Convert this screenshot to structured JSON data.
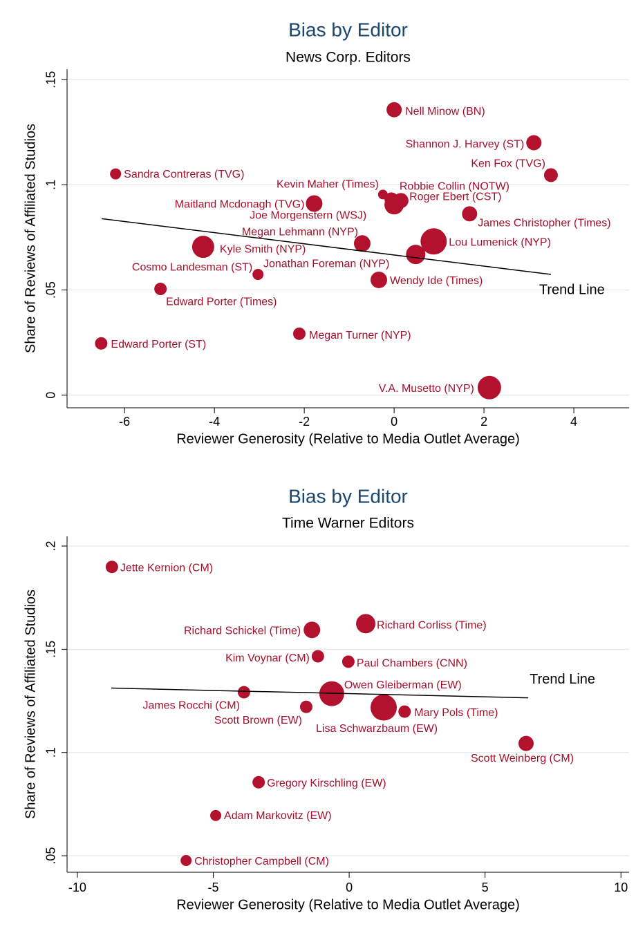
{
  "chart_data": [
    {
      "type": "scatter",
      "title": "Bias by Editor",
      "subtitle": "News Corp. Editors",
      "x_label": "Reviewer Generosity (Relative to Media Outlet Average)",
      "y_label": "Share of Reviews of Affiliated Studios",
      "color": "#b3122e",
      "label_color": "#a3102b",
      "grid": true,
      "xlim": [
        -7.28,
        5.23
      ],
      "xticks": [
        -6,
        -4,
        -2,
        0,
        2,
        4
      ],
      "ylim": [
        -0.006,
        0.155
      ],
      "yticks": [
        0,
        {
          "value": 0.05,
          "label": ".05"
        },
        {
          "value": 0.1,
          "label": ".1"
        },
        {
          "value": 0.15,
          "label": ".15"
        }
      ],
      "labels": [
        "Nell Minow (BN)",
        "Shannon J. Harvey (ST)",
        "Ken Fox (TVG)",
        "Sandra Contreras (TVG)",
        "Kevin Maher (Times)",
        "Robbie Collin (NOTW)",
        "Roger Ebert (CST)",
        "Maitland Mcdonagh (TVG)",
        "James Christopher (Times)",
        "Joe Morgenstern (WSJ)",
        "Megan Lehmann (NYP)",
        "Lou Lumenick (NYP)",
        "Kyle Smith (NYP)",
        "Jonathan Foreman (NYP)",
        "Cosmo Landesman (ST)",
        "Wendy Ide (Times)",
        "Edward Porter (Times)",
        "Edward Porter (ST)",
        "Megan Turner (NYP)",
        "V.A. Musetto (NYP)"
      ],
      "x": [
        0,
        3.11,
        3.49,
        -6.2,
        -0.25,
        0.15,
        0,
        -1.78,
        1.68,
        -0.06,
        -0.71,
        0.88,
        -4.25,
        0.48,
        -3.03,
        -0.34,
        -5.2,
        -6.52,
        -2.11,
        2.12
      ],
      "y": [
        0.1357,
        0.12,
        0.1046,
        0.1052,
        0.0954,
        0.0925,
        0.0905,
        0.0911,
        0.0862,
        0.0931,
        0.0721,
        0.0731,
        0.0705,
        0.0669,
        0.0574,
        0.0548,
        0.0505,
        0.0246,
        0.0292,
        0.0036
      ],
      "sizes": [
        11,
        11,
        10,
        8,
        7,
        11,
        14,
        12,
        11,
        10,
        12,
        19,
        16,
        14,
        8,
        12,
        9,
        9,
        9,
        17
      ],
      "trend_line": {
        "x": [
          -6.51,
          3.49
        ],
        "y": [
          0.0839,
          0.0574
        ]
      },
      "trend_label": "Trend Line"
    },
    {
      "type": "scatter",
      "title": "Bias by Editor",
      "subtitle": "Time Warner Editors",
      "x_label": "Reviewer Generosity (Relative to Media Outlet Average)",
      "y_label": "Share of Reviews of Affiliated Studios",
      "color": "#b3122e",
      "label_color": "#a3102b",
      "grid": true,
      "xlim": [
        -10.38,
        10.3
      ],
      "xticks": [
        -10,
        -5,
        0,
        5,
        10
      ],
      "ylim": [
        0.042,
        0.2047
      ],
      "yticks": [
        {
          "value": 0.05,
          "label": ".05"
        },
        {
          "value": 0.1,
          "label": ".1"
        },
        {
          "value": 0.15,
          "label": ".15"
        },
        {
          "value": 0.2,
          "label": ".2"
        }
      ],
      "labels": [
        "Jette Kernion (CM)",
        "Richard Schickel (Time)",
        "Richard Corliss (Time)",
        "Kim Voynar (CM)",
        "Paul Chambers (CNN)",
        "James Rocchi (CM)",
        "Owen Gleiberman (EW)",
        "Scott Brown (EW)",
        "Lisa Schwarzbaum (EW)",
        "Mary Pols (Time)",
        "Scott Weinberg (CM)",
        "Gregory Kirschling (EW)",
        "Adam Markovitz (EW)",
        "Christopher Campbell (CM)"
      ],
      "x": [
        -8.73,
        -1.37,
        0.61,
        -1.15,
        -0.03,
        -3.87,
        -0.64,
        -1.58,
        1.27,
        2.04,
        6.51,
        -3.33,
        -4.91,
        -6.0
      ],
      "y": [
        0.1899,
        0.1594,
        0.1624,
        0.1466,
        0.144,
        0.1292,
        0.1285,
        0.1221,
        0.1218,
        0.1198,
        0.1044,
        0.0856,
        0.0695,
        0.0477
      ],
      "sizes": [
        9,
        12,
        14,
        9,
        9,
        9,
        18,
        9,
        19,
        9,
        11,
        9,
        8,
        8
      ],
      "trend_line": {
        "x": [
          -8.75,
          6.59
        ],
        "y": [
          0.1312,
          0.1265
        ]
      },
      "trend_label": "Trend Line"
    }
  ]
}
